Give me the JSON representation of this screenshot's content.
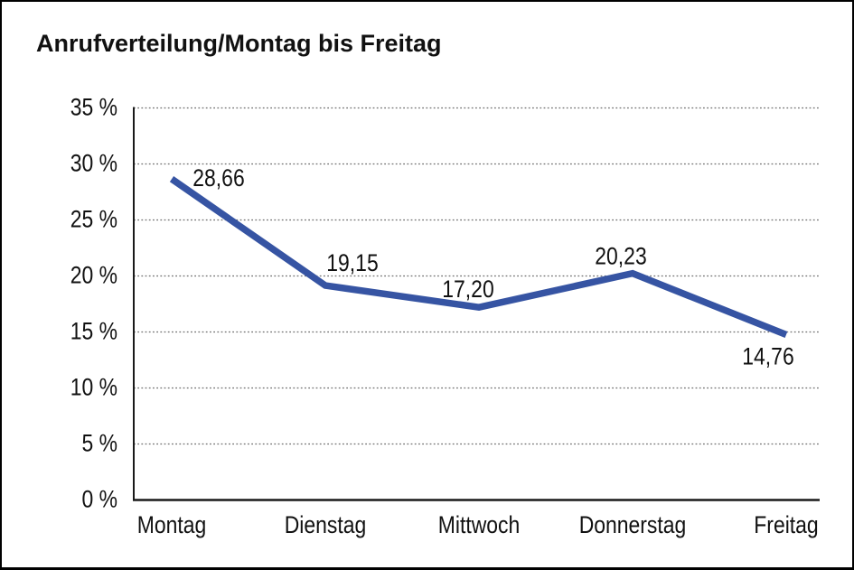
{
  "title": "Anrufverteilung/Montag bis Freitag",
  "chart_data": {
    "type": "line",
    "title": "Anrufverteilung/Montag bis Freitag",
    "categories": [
      "Montag",
      "Dienstag",
      "Mittwoch",
      "Donnerstag",
      "Freitag"
    ],
    "values": [
      28.66,
      19.15,
      17.2,
      20.23,
      14.76
    ],
    "point_labels": [
      "28,66",
      "19,15",
      "17,20",
      "20,23",
      "14,76"
    ],
    "xlabel": "",
    "ylabel": "",
    "ylim": [
      0,
      35
    ],
    "ytick_step": 5,
    "ytick_labels": [
      "0 %",
      "5 %",
      "10 %",
      "15 %",
      "20 %",
      "25 %",
      "30 %",
      "35 %"
    ],
    "grid": "horizontal-dotted",
    "legend": "none",
    "line_color": "#3654a3",
    "axis_color": "#1a1a1a",
    "grid_color": "#6e6e6e",
    "label_color": "#111111"
  }
}
